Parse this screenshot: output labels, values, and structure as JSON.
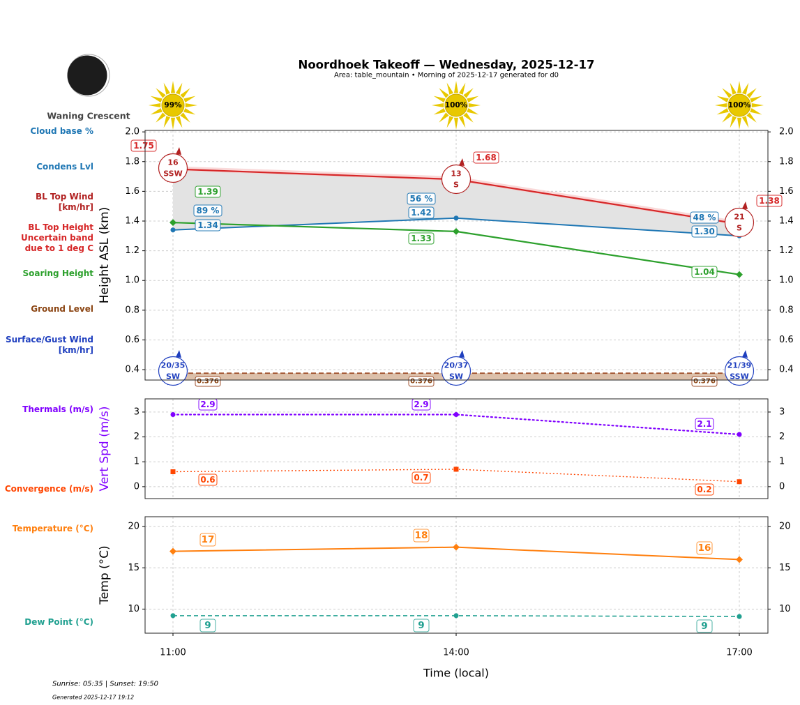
{
  "header": {
    "title": "Noordhoek Takeoff — Wednesday, 2025-12-17",
    "subtitle": "Area: table_mountain • Morning of 2025-12-17 generated for d0",
    "moon_phase": "Waning Crescent"
  },
  "footer": {
    "sun_times": "Sunrise: 05:35 | Sunset: 19:50",
    "generated": "Generated 2025-12-17 19:12"
  },
  "colors": {
    "bl_top": "#d62728",
    "condens": "#1f77b4",
    "soaring": "#2ca02c",
    "ground": "#8b4513",
    "bl_wind": "#b22222",
    "surface_wind": "#1f3fbf",
    "thermals": "#8000ff",
    "convergence": "#ff4500",
    "temperature": "#ff7f0e",
    "dew_point": "#20a090",
    "sun": "#e8c800"
  },
  "side_labels": {
    "cloud_base": "Cloud base %",
    "condens": "Condens Lvl",
    "bl_wind": [
      "BL Top Wind",
      "[km/hr]"
    ],
    "bl_top": [
      "BL Top Height",
      "Uncertain band",
      "due to 1 deg C"
    ],
    "soaring": "Soaring Height",
    "ground": "Ground Level",
    "surface_wind": [
      "Surface/Gust Wind",
      "[km/hr]"
    ],
    "thermals": "Thermals (m/s)",
    "convergence": "Convergence (m/s)",
    "temperature": "Temperature (°C)",
    "dew_point": "Dew Point (°C)"
  },
  "sun_icons": [
    "99%",
    "100%",
    "100%"
  ],
  "chart_data": [
    {
      "type": "line",
      "panel": "heights",
      "ylabel": "Height ASL (km)",
      "x": [
        "11:00",
        "14:00",
        "17:00"
      ],
      "ylim": [
        0.33,
        2.01
      ],
      "yticks": [
        "0.4",
        "0.6",
        "0.8",
        "1.0",
        "1.2",
        "1.4",
        "1.6",
        "1.8",
        "2.0"
      ],
      "grid": true,
      "series": [
        {
          "key": "bl_top",
          "values": [
            1.75,
            1.68,
            1.38
          ],
          "labels": [
            "1.75",
            "1.68",
            "1.38"
          ],
          "band_upper": [
            1.77,
            1.7,
            1.4
          ]
        },
        {
          "key": "condens",
          "values": [
            1.34,
            1.42,
            1.3
          ],
          "labels": [
            "1.34",
            "1.42",
            "1.30"
          ],
          "cloud_base_pct": [
            "89 %",
            "56 %",
            "48 %"
          ]
        },
        {
          "key": "soaring",
          "values": [
            1.39,
            1.33,
            1.04
          ],
          "labels": [
            "1.39",
            "1.33",
            "1.04"
          ]
        },
        {
          "key": "ground",
          "values": [
            0.376,
            0.376,
            0.376
          ],
          "labels": [
            "0.376",
            "0.376",
            "0.376"
          ]
        }
      ],
      "bl_wind": [
        {
          "speed": "16",
          "dir": "SSW"
        },
        {
          "speed": "13",
          "dir": "S"
        },
        {
          "speed": "21",
          "dir": "S"
        }
      ],
      "surface_wind": [
        {
          "speed": "20/35",
          "dir": "SW"
        },
        {
          "speed": "20/37",
          "dir": "SW"
        },
        {
          "speed": "21/39",
          "dir": "SSW"
        }
      ]
    },
    {
      "type": "line",
      "panel": "vertical_speed",
      "ylabel": "Vert Spd (m/s)",
      "x": [
        "11:00",
        "14:00",
        "17:00"
      ],
      "ylim": [
        -0.48,
        3.53
      ],
      "yticks": [
        "0",
        "1",
        "2",
        "3"
      ],
      "grid": true,
      "series": [
        {
          "key": "thermals",
          "values": [
            2.9,
            2.9,
            2.1
          ],
          "labels": [
            "2.9",
            "2.9",
            "2.1"
          ]
        },
        {
          "key": "convergence",
          "values": [
            0.6,
            0.7,
            0.2
          ],
          "labels": [
            "0.6",
            "0.7",
            "0.2"
          ]
        }
      ]
    },
    {
      "type": "line",
      "panel": "temperature",
      "ylabel": "Temp (°C)",
      "xlabel": "Time (local)",
      "x": [
        "11:00",
        "14:00",
        "17:00"
      ],
      "ylim": [
        7.08,
        21.19
      ],
      "yticks": [
        "10",
        "15",
        "20"
      ],
      "grid": true,
      "series": [
        {
          "key": "temperature",
          "values": [
            17,
            17.5,
            16
          ],
          "labels": [
            "17",
            "18",
            "16"
          ]
        },
        {
          "key": "dew_point",
          "values": [
            9.2,
            9.2,
            9.1
          ],
          "labels": [
            "9",
            "9",
            "9"
          ]
        }
      ]
    }
  ]
}
